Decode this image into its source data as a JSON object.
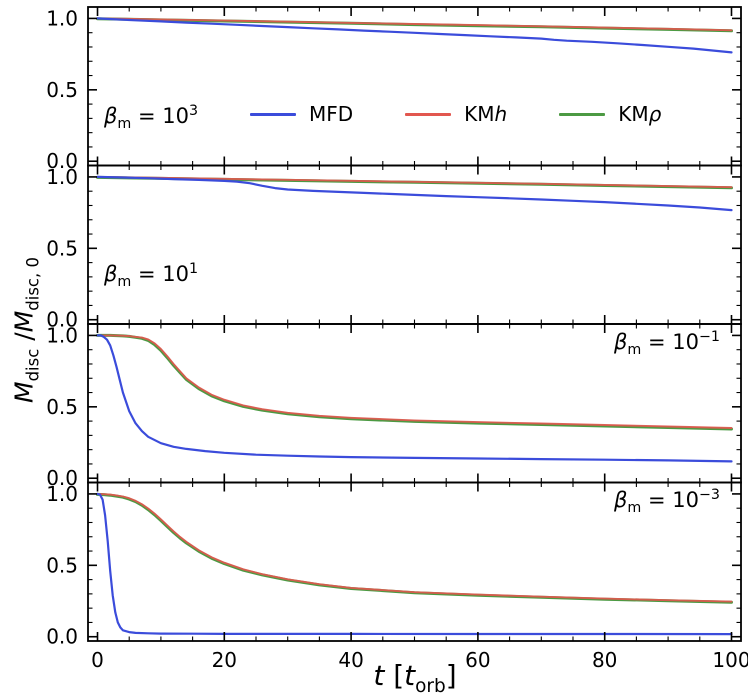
{
  "figure": {
    "background": "#ffffff",
    "axis_color": "#000000",
    "xlabel": {
      "t": "t",
      "open": " [",
      "t2": "t",
      "sub": "orb",
      "close": "]"
    },
    "ylabel": {
      "m1": "M",
      "s1": "disc",
      "sep": " /",
      "m2": "M",
      "s2": "disc, 0"
    }
  },
  "legend": {
    "items": [
      {
        "label": "MFD",
        "suffix": "",
        "color": "#3b4cdb"
      },
      {
        "label": "KM",
        "suffix": "h",
        "color": "#e2574f"
      },
      {
        "label": "KM",
        "suffix": "ρ",
        "color": "#4c9a43"
      }
    ]
  },
  "chart_data": {
    "type": "line",
    "xlabel": "t [t_orb]",
    "ylabel": "M_disc / M_disc, 0",
    "xlim": [
      -1.5,
      101.5
    ],
    "ylim": [
      -0.03,
      1.08
    ],
    "xticks": {
      "values": [
        0,
        20,
        40,
        60,
        80,
        100
      ],
      "labels": [
        "0",
        "20",
        "40",
        "60",
        "80",
        "100"
      ],
      "minor_step": 5
    },
    "yticks": {
      "values": [
        0,
        0.5,
        1
      ],
      "labels": [
        "0.0",
        "0.5",
        "1.0"
      ],
      "minor_step": 0.1
    },
    "grid": false,
    "legend_position": "first panel, inside top",
    "panels": [
      {
        "beta_label": {
          "base": "β",
          "sub": "m",
          "eq": " = 10",
          "exp": "3"
        },
        "series": [
          {
            "name": "KMρ",
            "color": "#4c9a43",
            "x": [
              0,
              10,
              20,
              30,
              40,
              50,
              60,
              70,
              80,
              90,
              100
            ],
            "y": [
              0.998,
              0.99,
              0.982,
              0.974,
              0.966,
              0.957,
              0.949,
              0.941,
              0.932,
              0.923,
              0.913
            ]
          },
          {
            "name": "KMh",
            "color": "#e2574f",
            "x": [
              0,
              10,
              20,
              30,
              40,
              50,
              60,
              70,
              80,
              90,
              100
            ],
            "y": [
              1.0,
              0.993,
              0.985,
              0.977,
              0.969,
              0.961,
              0.953,
              0.945,
              0.936,
              0.927,
              0.917
            ]
          },
          {
            "name": "MFD",
            "color": "#3b4cdb",
            "x": [
              0,
              3,
              6,
              10,
              14,
              18,
              22,
              26,
              30,
              34,
              38,
              42,
              46,
              50,
              54,
              58,
              62,
              66,
              70,
              72,
              74,
              78,
              82,
              86,
              90,
              94,
              100
            ],
            "y": [
              1.0,
              0.993,
              0.987,
              0.979,
              0.971,
              0.963,
              0.955,
              0.947,
              0.939,
              0.931,
              0.923,
              0.915,
              0.907,
              0.899,
              0.891,
              0.883,
              0.875,
              0.867,
              0.859,
              0.85,
              0.844,
              0.836,
              0.826,
              0.814,
              0.801,
              0.789,
              0.762
            ]
          }
        ]
      },
      {
        "beta_label": {
          "base": "β",
          "sub": "m",
          "eq": " = 10",
          "exp": "1"
        },
        "series": [
          {
            "name": "KMρ",
            "color": "#4c9a43",
            "x": [
              0,
              10,
              20,
              30,
              40,
              50,
              60,
              70,
              80,
              90,
              100
            ],
            "y": [
              0.997,
              0.99,
              0.983,
              0.976,
              0.969,
              0.962,
              0.955,
              0.948,
              0.94,
              0.932,
              0.924
            ]
          },
          {
            "name": "KMh",
            "color": "#e2574f",
            "x": [
              0,
              10,
              20,
              30,
              40,
              50,
              60,
              70,
              80,
              90,
              100
            ],
            "y": [
              1.0,
              0.994,
              0.987,
              0.98,
              0.973,
              0.966,
              0.959,
              0.952,
              0.944,
              0.936,
              0.928
            ]
          },
          {
            "name": "MFD",
            "color": "#3b4cdb",
            "x": [
              0,
              4,
              8,
              12,
              16,
              20,
              22,
              24,
              26,
              28,
              30,
              34,
              38,
              42,
              46,
              50,
              55,
              60,
              65,
              70,
              75,
              80,
              85,
              90,
              95,
              100
            ],
            "y": [
              1.0,
              0.996,
              0.991,
              0.985,
              0.979,
              0.972,
              0.967,
              0.956,
              0.938,
              0.922,
              0.912,
              0.902,
              0.895,
              0.888,
              0.881,
              0.874,
              0.866,
              0.858,
              0.85,
              0.842,
              0.833,
              0.824,
              0.812,
              0.8,
              0.786,
              0.768
            ]
          }
        ]
      },
      {
        "beta_label": {
          "base": "β",
          "sub": "m",
          "eq": " = 10",
          "exp": "−1"
        },
        "series": [
          {
            "name": "KMρ",
            "color": "#4c9a43",
            "x": [
              0,
              2,
              4,
              5,
              6,
              7,
              8,
              9,
              10,
              11,
              12,
              13,
              14,
              16,
              18,
              20,
              23,
              26,
              30,
              35,
              40,
              50,
              60,
              70,
              80,
              90,
              100
            ],
            "y": [
              1.0,
              1.0,
              0.997,
              0.993,
              0.987,
              0.98,
              0.965,
              0.936,
              0.895,
              0.845,
              0.79,
              0.741,
              0.692,
              0.627,
              0.577,
              0.542,
              0.503,
              0.476,
              0.451,
              0.43,
              0.416,
              0.398,
              0.386,
              0.376,
              0.366,
              0.355,
              0.345
            ]
          },
          {
            "name": "KMh",
            "color": "#e2574f",
            "x": [
              0,
              2,
              4,
              5,
              6,
              7,
              8,
              9,
              10,
              11,
              12,
              13,
              14,
              16,
              18,
              20,
              23,
              26,
              30,
              35,
              40,
              50,
              60,
              70,
              80,
              90,
              100
            ],
            "y": [
              1.0,
              1.0,
              0.998,
              0.995,
              0.99,
              0.985,
              0.972,
              0.945,
              0.905,
              0.855,
              0.8,
              0.75,
              0.7,
              0.635,
              0.585,
              0.55,
              0.51,
              0.483,
              0.458,
              0.437,
              0.423,
              0.405,
              0.393,
              0.383,
              0.373,
              0.362,
              0.352
            ]
          },
          {
            "name": "MFD",
            "color": "#3b4cdb",
            "x": [
              0,
              0.5,
              1,
              1.5,
              2,
              2.5,
              3,
              3.5,
              4,
              5,
              6,
              7,
              8,
              10,
              12,
              14,
              17,
              20,
              25,
              30,
              35,
              40,
              50,
              60,
              70,
              80,
              90,
              100
            ],
            "y": [
              1.0,
              1.0,
              0.99,
              0.97,
              0.93,
              0.86,
              0.78,
              0.69,
              0.6,
              0.47,
              0.385,
              0.33,
              0.29,
              0.245,
              0.22,
              0.205,
              0.19,
              0.178,
              0.165,
              0.158,
              0.152,
              0.148,
              0.142,
              0.138,
              0.134,
              0.13,
              0.125,
              0.118
            ]
          }
        ]
      },
      {
        "beta_label": {
          "base": "β",
          "sub": "m",
          "eq": " = 10",
          "exp": "−3"
        },
        "series": [
          {
            "name": "KMρ",
            "color": "#4c9a43",
            "x": [
              0,
              1,
              2,
              3,
              4,
              5,
              6,
              7,
              8,
              9,
              10,
              11,
              12,
              13,
              14,
              16,
              18,
              20,
              23,
              26,
              30,
              35,
              40,
              50,
              60,
              70,
              80,
              90,
              100
            ],
            "y": [
              0.997,
              0.995,
              0.991,
              0.985,
              0.977,
              0.964,
              0.946,
              0.921,
              0.89,
              0.854,
              0.814,
              0.772,
              0.73,
              0.692,
              0.657,
              0.598,
              0.55,
              0.512,
              0.466,
              0.433,
              0.397,
              0.363,
              0.338,
              0.308,
              0.291,
              0.276,
              0.263,
              0.252,
              0.242
            ]
          },
          {
            "name": "KMh",
            "color": "#e2574f",
            "x": [
              0,
              1,
              2,
              3,
              4,
              5,
              6,
              7,
              8,
              9,
              10,
              11,
              12,
              13,
              14,
              16,
              18,
              20,
              23,
              26,
              30,
              35,
              40,
              50,
              60,
              70,
              80,
              90,
              100
            ],
            "y": [
              1.0,
              0.998,
              0.995,
              0.99,
              0.982,
              0.97,
              0.952,
              0.928,
              0.898,
              0.862,
              0.822,
              0.78,
              0.738,
              0.7,
              0.665,
              0.605,
              0.557,
              0.518,
              0.472,
              0.438,
              0.402,
              0.368,
              0.342,
              0.312,
              0.295,
              0.28,
              0.267,
              0.256,
              0.246
            ]
          },
          {
            "name": "MFD",
            "color": "#3b4cdb",
            "x": [
              0,
              0.4,
              0.8,
              1.2,
              1.6,
              2,
              2.4,
              2.8,
              3.2,
              3.6,
              4,
              5,
              6,
              8,
              10,
              15,
              20,
              30,
              40,
              60,
              80,
              100
            ],
            "y": [
              1.0,
              0.995,
              0.96,
              0.85,
              0.67,
              0.46,
              0.29,
              0.17,
              0.1,
              0.065,
              0.045,
              0.032,
              0.027,
              0.024,
              0.022,
              0.021,
              0.02,
              0.02,
              0.02,
              0.019,
              0.019,
              0.018
            ]
          }
        ]
      }
    ]
  }
}
